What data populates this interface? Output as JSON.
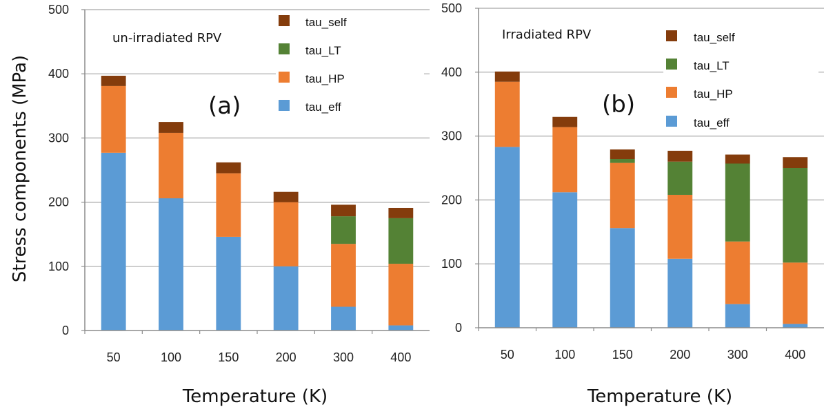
{
  "y_axis_title": "Stress components (MPa)",
  "chart_data": [
    {
      "type": "bar",
      "stacked": true,
      "title": "un-irradiated RPV",
      "panel_label": "(a)",
      "xlabel": "Temperature (K)",
      "ylabel": "Stress components (MPa)",
      "categories": [
        "50",
        "100",
        "150",
        "200",
        "300",
        "400"
      ],
      "ylim": [
        0,
        500
      ],
      "yticks": [
        0,
        100,
        200,
        300,
        400,
        500
      ],
      "grid": "horizontal",
      "legend_position": "top-right",
      "series": [
        {
          "name": "tau_eff",
          "color": "#5b9bd5",
          "values": [
            277,
            206,
            146,
            100,
            37,
            8
          ]
        },
        {
          "name": "tau_HP",
          "color": "#ed7d31",
          "values": [
            104,
            102,
            99,
            100,
            98,
            96
          ]
        },
        {
          "name": "tau_LT",
          "color": "#548235",
          "values": [
            0,
            0,
            0,
            0,
            43,
            71
          ]
        },
        {
          "name": "tau_self",
          "color": "#843c0c",
          "values": [
            16,
            17,
            17,
            16,
            18,
            16
          ]
        }
      ]
    },
    {
      "type": "bar",
      "stacked": true,
      "title": "Irradiated RPV",
      "panel_label": "(b)",
      "xlabel": "Temperature (K)",
      "ylabel": "Stress components (MPa)",
      "categories": [
        "50",
        "100",
        "150",
        "200",
        "300",
        "400"
      ],
      "ylim": [
        0,
        500
      ],
      "yticks": [
        0,
        100,
        200,
        300,
        400,
        500
      ],
      "grid": "horizontal",
      "legend_position": "top-right",
      "series": [
        {
          "name": "tau_eff",
          "color": "#5b9bd5",
          "values": [
            283,
            212,
            156,
            108,
            37,
            6
          ]
        },
        {
          "name": "tau_HP",
          "color": "#ed7d31",
          "values": [
            102,
            102,
            102,
            100,
            98,
            96
          ]
        },
        {
          "name": "tau_LT",
          "color": "#548235",
          "values": [
            0,
            0,
            6,
            52,
            122,
            148
          ]
        },
        {
          "name": "tau_self",
          "color": "#843c0c",
          "values": [
            16,
            16,
            15,
            17,
            14,
            17
          ]
        }
      ]
    }
  ]
}
